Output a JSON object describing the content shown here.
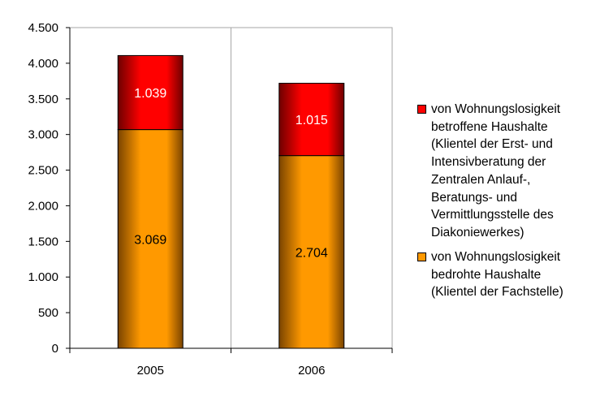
{
  "chart_data": {
    "type": "bar",
    "stacked": true,
    "categories": [
      "2005",
      "2006"
    ],
    "series": [
      {
        "name": "von Wohnungslosigkeit bedrohte Haushalte (Klientel der Fachstelle)",
        "values": [
          3069,
          2704
        ],
        "labels": [
          "3.069",
          "2.704"
        ],
        "color": "#FF9900",
        "label_color": "#000000"
      },
      {
        "name": "von Wohnungslosigkeit betroffene Haushalte (Klientel der Erst- und Intensivberatung der Zentralen Anlauf-, Beratungs- und Vermittlungsstelle des Diakoniewerkes)",
        "values": [
          1039,
          1015
        ],
        "labels": [
          "1.039",
          "1.015"
        ],
        "color": "#FF0000",
        "label_color": "#FFFFFF"
      }
    ],
    "ylim": [
      0,
      4500
    ],
    "yticks": [
      0,
      500,
      1000,
      1500,
      2000,
      2500,
      3000,
      3500,
      4000,
      4500
    ],
    "ytick_labels": [
      "0",
      "500",
      "1.000",
      "1.500",
      "2.000",
      "2.500",
      "3.000",
      "3.500",
      "4.000",
      "4.500"
    ],
    "grid": "vertical",
    "legend_position": "right",
    "title": "",
    "xlabel": "",
    "ylabel": ""
  },
  "legend": {
    "items": [
      {
        "text": "von Wohnungslosigkeit\nbetroffene Haushalte\n(Klientel der Erst- und\nIntensivberatung der\nZentralen Anlauf-,\nBeratungs- und\nVermittlungsstelle des\nDiakoniewerkes)",
        "color": "#FF0000"
      },
      {
        "text": "von Wohnungslosigkeit\nbedrohte Haushalte\n(Klientel der Fachstelle)",
        "color": "#FF9900"
      }
    ]
  }
}
